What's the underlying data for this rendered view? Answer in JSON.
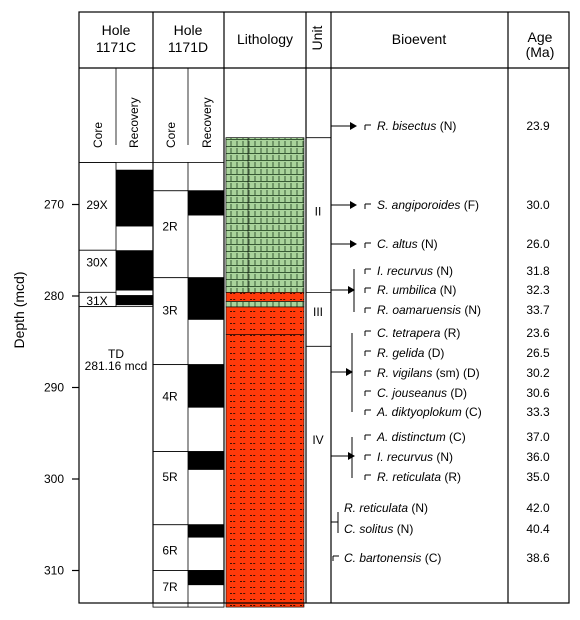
{
  "header": {
    "hole_c": [
      "Hole",
      "1171C"
    ],
    "hole_d": [
      "Hole",
      "1171D"
    ],
    "lithology": "Lithology",
    "unit": "Unit",
    "bioevent": "Bioevent",
    "age": [
      "Age",
      "(Ma)"
    ]
  },
  "subheader": {
    "core": "Core",
    "recovery": "Recovery"
  },
  "depth_axis": {
    "label": "Depth (mcd)",
    "range": [
      258,
      314
    ],
    "ticks": [
      270,
      280,
      290,
      300,
      310
    ]
  },
  "hole_1171C": {
    "cores": [
      {
        "label": "29X",
        "top": 265.4,
        "bottom": 275.0
      },
      {
        "label": "30X",
        "top": 275.0,
        "bottom": 279.6
      },
      {
        "label": "31X",
        "top": 279.6,
        "bottom": 281.16
      }
    ],
    "recovery": [
      {
        "top": 266.2,
        "bottom": 272.4
      },
      {
        "top": 275.0,
        "bottom": 279.4
      },
      {
        "top": 279.9,
        "bottom": 281.0
      }
    ],
    "td": [
      "TD",
      "281.16 mcd"
    ]
  },
  "hole_1171D": {
    "cores": [
      {
        "label": "2R",
        "top": 265.4,
        "bottom": 268.5
      },
      {
        "label": "2R",
        "top": 268.5,
        "bottom": 278.0
      },
      {
        "label": "3R",
        "top": 278.0,
        "bottom": 287.5
      },
      {
        "label": "4R",
        "top": 287.5,
        "bottom": 297.0
      },
      {
        "label": "5R",
        "top": 297.0,
        "bottom": 305.0
      },
      {
        "label": "6R",
        "top": 305.0,
        "bottom": 310.0
      },
      {
        "label": "7R",
        "top": 310.0,
        "bottom": 314.0
      }
    ],
    "core_labels": [
      "2R",
      "3R",
      "4R",
      "5R",
      "6R",
      "7R"
    ],
    "recovery": [
      {
        "top": 268.5,
        "bottom": 271.2
      },
      {
        "top": 278.0,
        "bottom": 282.6
      },
      {
        "top": 287.5,
        "bottom": 292.2
      },
      {
        "top": 297.0,
        "bottom": 299.0
      },
      {
        "top": 305.0,
        "bottom": 306.4
      },
      {
        "top": 310.0,
        "bottom": 311.6
      }
    ]
  },
  "lithology": [
    {
      "top": 262.7,
      "bottom": 279.6,
      "type": "green-nannofossil",
      "color": "#a9d39b"
    },
    {
      "top": 279.6,
      "bottom": 280.6,
      "type": "orange-claystone",
      "color": "#ff3a0a"
    },
    {
      "top": 280.6,
      "bottom": 281.2,
      "type": "green-nannofossil",
      "color": "#a9d39b"
    },
    {
      "top": 281.2,
      "bottom": 284.2,
      "type": "orange-claystone",
      "color": "#ff3a0a"
    },
    {
      "top": 284.2,
      "bottom": 314.0,
      "type": "orange-claystone",
      "color": "#ff3a0a"
    }
  ],
  "units": [
    {
      "label": "II",
      "top": 262.7,
      "bottom": 279.6
    },
    {
      "label": "III",
      "top": 279.6,
      "bottom": 285.5
    },
    {
      "label": "IV",
      "top": 285.5,
      "bottom": 314.0
    }
  ],
  "bioevents": [
    {
      "name": "R. bisectus",
      "group": "(N)",
      "age": "23.9"
    },
    {
      "name": "S. angiporoides",
      "group": "(F)",
      "age": "30.0"
    },
    {
      "name": "C. altus",
      "group": "(N)",
      "age": "26.0"
    },
    {
      "name": "I. recurvus",
      "group": "(N)",
      "age": "31.8"
    },
    {
      "name": "R. umbilica",
      "group": "(N)",
      "age": "32.3"
    },
    {
      "name": "R. oamaruensis",
      "group": "(N)",
      "age": "33.7"
    },
    {
      "name": "C. tetrapera",
      "group": "(R)",
      "age": "23.6"
    },
    {
      "name": "R. gelida",
      "group": "(D)",
      "age": "26.5"
    },
    {
      "name": "R. vigilans",
      "group": "(sm) (D)",
      "age": "30.2"
    },
    {
      "name": "C. jouseanus",
      "group": "(D)",
      "age": "30.6"
    },
    {
      "name": "A. diktyoplokum",
      "group": "(C)",
      "age": "33.3"
    },
    {
      "name": "A. distinctum",
      "group": "(C)",
      "age": "37.0"
    },
    {
      "name": "I. recurvus",
      "group": "(N)",
      "age": "36.0"
    },
    {
      "name": "R. reticulata",
      "group": "(R)",
      "age": "35.0"
    },
    {
      "name": "R. reticulata",
      "group": "(N)",
      "age": "42.0"
    },
    {
      "name": "C. solitus",
      "group": "(N)",
      "age": "40.4"
    },
    {
      "name": "C. bartonensis",
      "group": "(C)",
      "age": "38.6"
    }
  ],
  "colors": {
    "green": "#a9d39b",
    "orange": "#ff3a0a",
    "black": "#000000"
  }
}
